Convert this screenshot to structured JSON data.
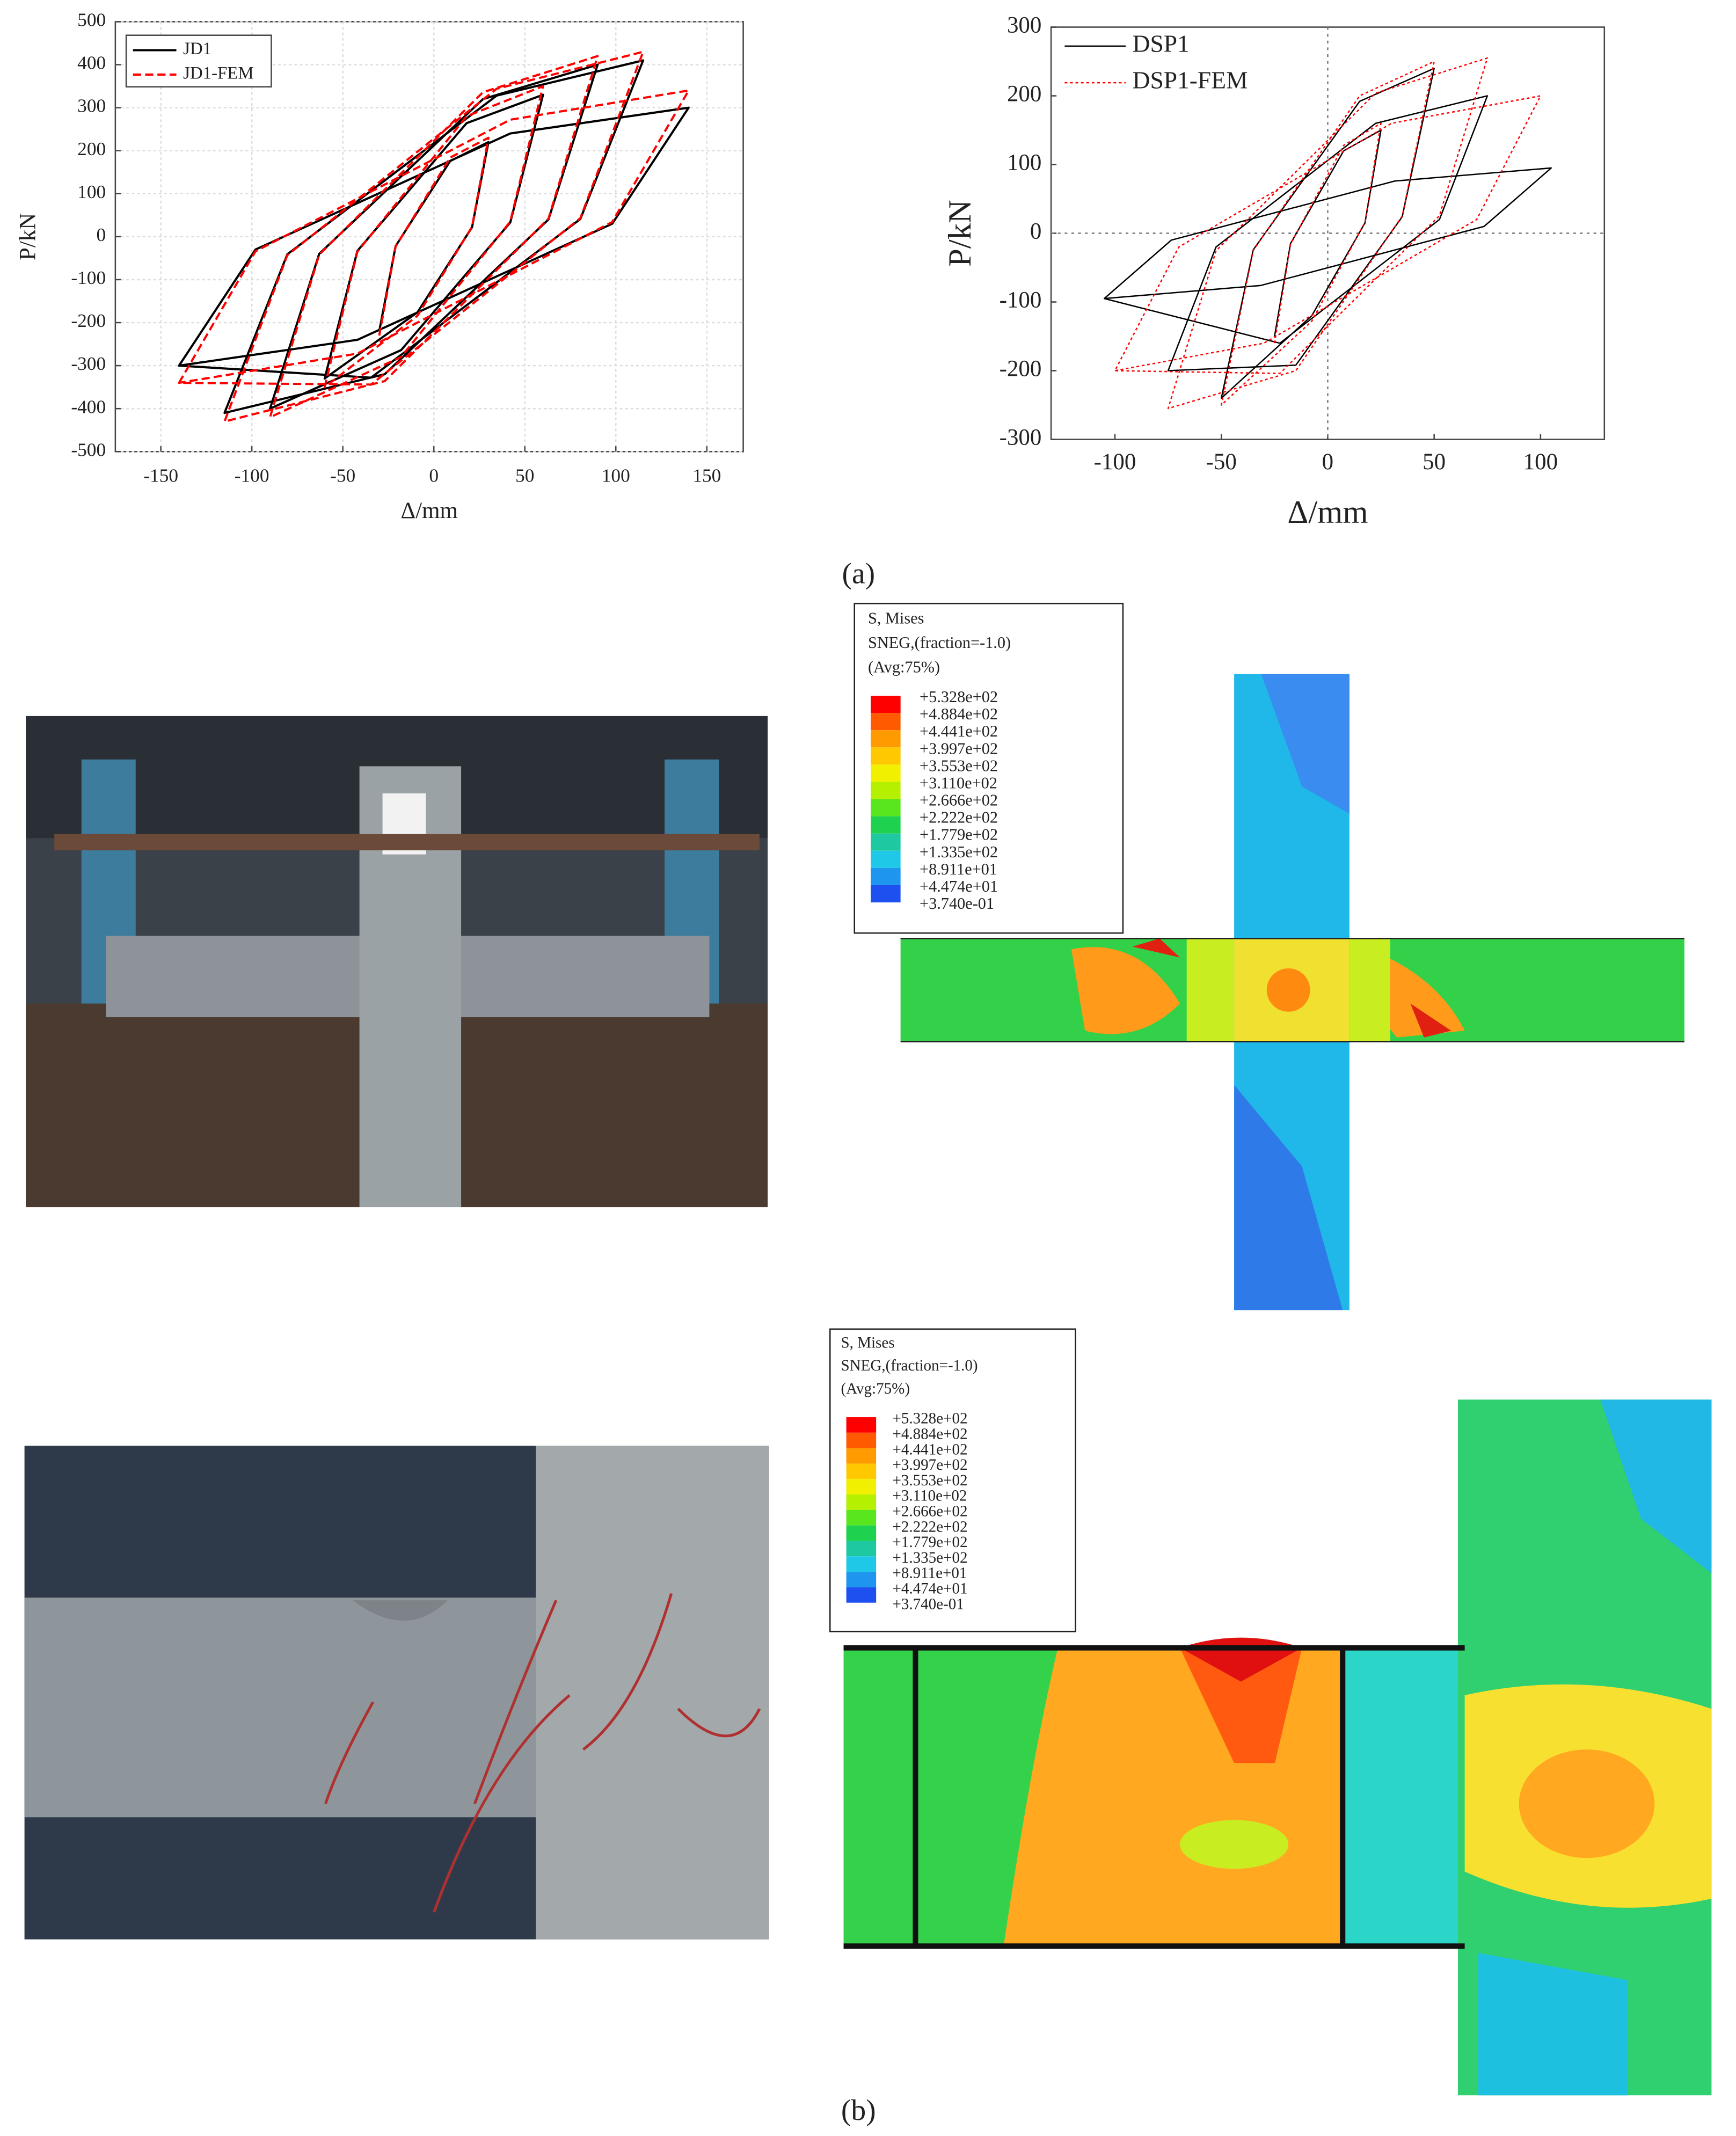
{
  "chart_data": [
    {
      "type": "line",
      "xlabel": "Δ/mm",
      "ylabel": "P/kN",
      "xlim": [
        -175,
        170
      ],
      "xticks": [
        -150,
        -100,
        -50,
        0,
        50,
        100,
        150
      ],
      "ylim": [
        -500,
        500
      ],
      "yticks": [
        -500,
        -400,
        -300,
        -200,
        -100,
        0,
        100,
        200,
        300,
        400,
        500
      ],
      "grid": true,
      "zero_lines": false,
      "legend": "upper left",
      "legend_box": true,
      "series": [
        {
          "name": "JD1",
          "color": "#000000",
          "style": "solid",
          "x": [
            -30,
            -21,
            9,
            30,
            21,
            -9,
            -60,
            -42,
            18,
            60,
            42,
            -18,
            -90,
            -63,
            27,
            90,
            63,
            -27,
            -115,
            -80.5,
            34.5,
            115,
            80.5,
            -34.5,
            -140,
            -98,
            42,
            140,
            98,
            -42,
            -140
          ],
          "values": [
            -220,
            -22,
            176,
            220,
            22,
            -176,
            -330,
            -33,
            264,
            330,
            33,
            -264,
            -400,
            -40,
            320,
            400,
            40,
            -320,
            -410,
            -41,
            328,
            410,
            41,
            -328,
            -300,
            -30,
            240,
            300,
            30,
            -240,
            -300
          ]
        },
        {
          "name": "JD1-FEM",
          "color": "#ff0000",
          "style": "dashed",
          "x": [
            -30,
            -21,
            9,
            30,
            21,
            -9,
            -60,
            -42,
            18,
            60,
            42,
            -18,
            -90,
            -63,
            27,
            90,
            63,
            -27,
            -115,
            -80.5,
            34.5,
            115,
            80.5,
            -34.5,
            -140,
            -98,
            42,
            140,
            98,
            -42,
            -140
          ],
          "values": [
            -230,
            -23,
            184,
            230,
            23,
            -184,
            -350,
            -35,
            280,
            350,
            35,
            -280,
            -420,
            -42,
            336,
            420,
            42,
            -336,
            -430,
            -43,
            344,
            430,
            43,
            -344,
            -340,
            -34,
            272,
            340,
            34,
            -272,
            -340
          ]
        }
      ]
    },
    {
      "type": "line",
      "xlabel": "Δ/mm",
      "ylabel": "P/kN",
      "xlim": [
        -130,
        130
      ],
      "xticks": [
        -100,
        -50,
        0,
        50,
        100
      ],
      "ylim": [
        -300,
        300
      ],
      "yticks": [
        -300,
        -200,
        -100,
        0,
        100,
        200,
        300
      ],
      "grid": false,
      "zero_lines": true,
      "legend": "upper left",
      "legend_box": false,
      "series": [
        {
          "name": "DSP1",
          "color": "#000000",
          "style": "solid",
          "x": [
            -25,
            -17.5,
            7.5,
            25,
            17.5,
            -7.5,
            -50,
            -35,
            15,
            50,
            35,
            -15,
            -75,
            -52.5,
            22.5,
            75,
            52.5,
            -22.5,
            -105,
            -73.5,
            31.5,
            105,
            73.5,
            -31.5,
            -105
          ],
          "values": [
            -150,
            -15,
            120,
            150,
            15,
            -120,
            -240,
            -24,
            192,
            240,
            24,
            -192,
            -200,
            -20,
            160,
            200,
            20,
            -160,
            -95,
            -10,
            76,
            95,
            10,
            -76,
            -95
          ]
        },
        {
          "name": "DSP1-FEM",
          "color": "#ff0000",
          "style": "dotted",
          "x": [
            -25,
            -17.5,
            7.5,
            25,
            17.5,
            -7.5,
            -50,
            -35,
            15,
            50,
            35,
            -15,
            -75,
            -52.5,
            22.5,
            75,
            52.5,
            -22.5,
            -100,
            -70,
            30,
            100,
            70,
            -30,
            -100
          ],
          "values": [
            -160,
            -16,
            128,
            160,
            16,
            -128,
            -250,
            -25,
            200,
            250,
            25,
            -200,
            -255,
            -25.5,
            204,
            255,
            25.5,
            -204,
            -200,
            -20,
            160,
            200,
            20,
            -160,
            -200
          ]
        }
      ]
    }
  ],
  "captions": [
    "(a)",
    "(b)"
  ],
  "fem_legends": [
    {
      "title": "S, Mises",
      "lines": [
        "SNEG,(fraction=-1.0)",
        "(Avg:75%)"
      ],
      "levels": [
        "+5.328e+02",
        "+4.884e+02",
        "+4.441e+02",
        "+3.997e+02",
        "+3.553e+02",
        "+3.110e+02",
        "+2.666e+02",
        "+2.222e+02",
        "+1.779e+02",
        "+1.335e+02",
        "+8.911e+01",
        "+4.474e+01",
        "+3.740e-01"
      ]
    },
    {
      "title": "S, Mises",
      "lines": [
        "SNEG,(fraction=-1.0)",
        "(Avg:75%)"
      ],
      "levels": [
        "+5.328e+02",
        "+4.884e+02",
        "+4.441e+02",
        "+3.997e+02",
        "+3.553e+02",
        "+3.110e+02",
        "+2.666e+02",
        "+2.222e+02",
        "+1.779e+02",
        "+1.335e+02",
        "+8.911e+01",
        "+4.474e+01",
        "+3.740e-01"
      ]
    }
  ]
}
